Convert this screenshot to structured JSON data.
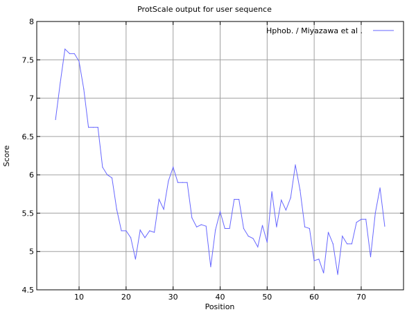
{
  "chart_data": {
    "type": "line",
    "title": "ProtScale output for user sequence",
    "xlabel": "Position",
    "ylabel": "Score",
    "xlim": [
      1,
      79
    ],
    "ylim": [
      4.5,
      8
    ],
    "x_ticks": [
      10,
      20,
      30,
      40,
      50,
      60,
      70
    ],
    "y_ticks": [
      4.5,
      5,
      5.5,
      6,
      6.5,
      7,
      7.5,
      8
    ],
    "y_tick_labels": [
      "4.5",
      "5",
      "5.5",
      "6",
      "6.5",
      "7",
      "7.5",
      "8"
    ],
    "grid": true,
    "legend_position": "top-right",
    "series": [
      {
        "name": "Hphob.  /  Miyazawa  et  al .",
        "color": "#6666ff",
        "x": [
          5,
          6,
          7,
          8,
          9,
          10,
          11,
          12,
          13,
          14,
          15,
          16,
          17,
          18,
          19,
          20,
          21,
          22,
          23,
          24,
          25,
          26,
          27,
          28,
          29,
          30,
          31,
          32,
          33,
          34,
          35,
          36,
          37,
          38,
          39,
          40,
          41,
          42,
          43,
          44,
          45,
          46,
          47,
          48,
          49,
          50,
          51,
          52,
          53,
          54,
          55,
          56,
          57,
          58,
          59,
          60,
          61,
          62,
          63,
          64,
          65,
          66,
          67,
          68,
          69,
          70,
          71,
          72,
          73,
          74,
          75
        ],
        "values": [
          6.72,
          7.2,
          7.64,
          7.58,
          7.58,
          7.48,
          7.12,
          6.62,
          6.62,
          6.62,
          6.1,
          6.0,
          5.96,
          5.55,
          5.27,
          5.27,
          5.18,
          4.9,
          5.28,
          5.18,
          5.27,
          5.25,
          5.68,
          5.55,
          5.92,
          6.1,
          5.9,
          5.9,
          5.9,
          5.44,
          5.32,
          5.35,
          5.33,
          4.8,
          5.28,
          5.52,
          5.3,
          5.3,
          5.68,
          5.68,
          5.3,
          5.2,
          5.17,
          5.06,
          5.34,
          5.12,
          5.78,
          5.32,
          5.67,
          5.54,
          5.7,
          6.13,
          5.8,
          5.32,
          5.3,
          4.88,
          4.9,
          4.72,
          5.25,
          5.1,
          4.7,
          5.2,
          5.1,
          5.1,
          5.38,
          5.42,
          5.42,
          4.93,
          5.5,
          5.83,
          5.33
        ]
      }
    ]
  }
}
